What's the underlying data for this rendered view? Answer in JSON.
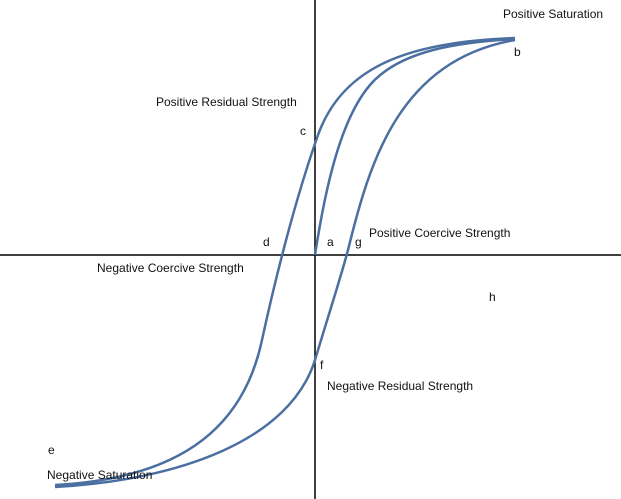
{
  "points": {
    "a": "a",
    "b": "b",
    "c": "c",
    "d": "d",
    "e": "e",
    "f": "f",
    "g": "g",
    "h": "h"
  },
  "annotations": {
    "positive_saturation": "Positive Saturation",
    "positive_residual": "Positive Residual Strength",
    "positive_coercive": "Positive Coercive Strength",
    "negative_coercive": "Negative Coercive Strength",
    "negative_residual": "Negative Residual Strength",
    "negative_saturation": "Negative Saturation"
  }
}
